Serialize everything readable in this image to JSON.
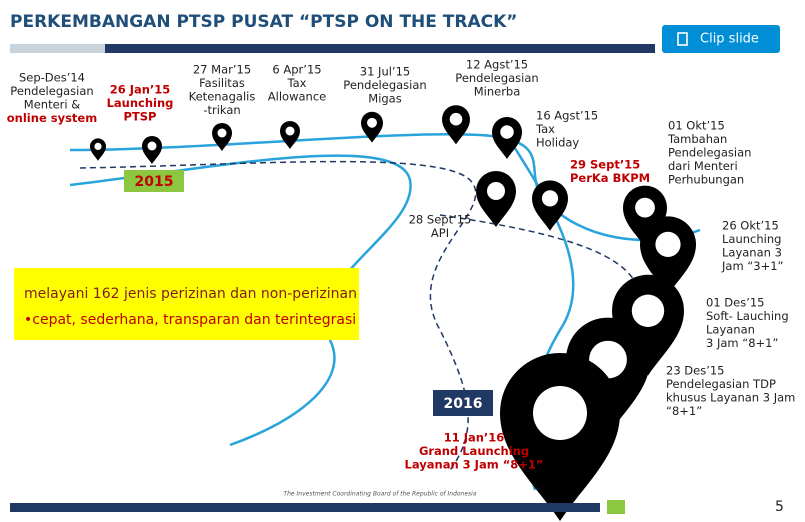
{
  "header": {
    "title": "PERKEMBANGAN PTSP PUSAT “PTSP ON THE TRACK”",
    "clip_button": "Clip slide"
  },
  "milestones": [
    {
      "lines": [
        "Sep-Des’14",
        "Pendelegasian",
        "Menteri &",
        "online system"
      ],
      "color": "#222222",
      "last_color": "#c00000"
    },
    {
      "lines": [
        "26 Jan’15",
        "Launching",
        "PTSP"
      ],
      "color": "#c00000",
      "last_color": "#c00000"
    },
    {
      "lines": [
        "27 Mar’15",
        "Fasilitas",
        "Ketenagalis",
        "-trikan"
      ],
      "color": "#222222",
      "last_color": "#222222"
    },
    {
      "lines": [
        "6 Apr’15",
        "Tax",
        "Allowance"
      ],
      "color": "#222222",
      "last_color": "#222222"
    },
    {
      "lines": [
        "31 Jul’15",
        "Pendelegasian",
        "Migas"
      ],
      "color": "#222222",
      "last_color": "#222222"
    },
    {
      "lines": [
        "12 Agst’15",
        "Pendelegasian",
        "Minerba"
      ],
      "color": "#222222",
      "last_color": "#222222"
    },
    {
      "lines": [
        "16 Agst’15",
        "Tax",
        "Holiday"
      ],
      "color": "#222222",
      "last_color": "#222222"
    },
    {
      "lines": [
        "01 Okt’15",
        "Tambahan",
        "Pendelegasian",
        "dari Menteri",
        "Perhubungan"
      ],
      "color": "#222222",
      "last_color": "#222222"
    },
    {
      "lines": [
        "28 Sept’15",
        "API"
      ],
      "color": "#222222",
      "last_color": "#222222"
    },
    {
      "lines": [
        "29 Sept’15",
        "PerKa BKPM"
      ],
      "color": "#c00000",
      "last_color": "#c00000"
    },
    {
      "lines": [
        "26 Okt’15",
        "Launching",
        "Layanan 3",
        "Jam “3+1”"
      ],
      "color": "#222222",
      "last_color": "#222222"
    },
    {
      "lines": [
        "01 Des’15",
        "Soft- Lauching",
        "Layanan",
        "3 Jam “8+1”"
      ],
      "color": "#222222",
      "last_color": "#222222"
    },
    {
      "lines": [
        "23 Des’15",
        "Pendelegasian TDP",
        "khusus Layanan 3 Jam",
        "“8+1”"
      ],
      "color": "#222222",
      "last_color": "#222222"
    },
    {
      "lines": [
        "11 Jan’16",
        "Grand Launching",
        "Layanan 3 Jam “8+1”"
      ],
      "color": "#c00000",
      "last_color": "#c00000"
    }
  ],
  "years": [
    "2015",
    "2016"
  ],
  "box": {
    "line1": "melayani 162 jenis perizinan dan non-perizinan",
    "line2": "•cepat, sederhana, transparan dan terintegrasi"
  },
  "footer": {
    "org": "The Investment Coordinating Board of the Republic of Indonesia",
    "page": "5"
  }
}
